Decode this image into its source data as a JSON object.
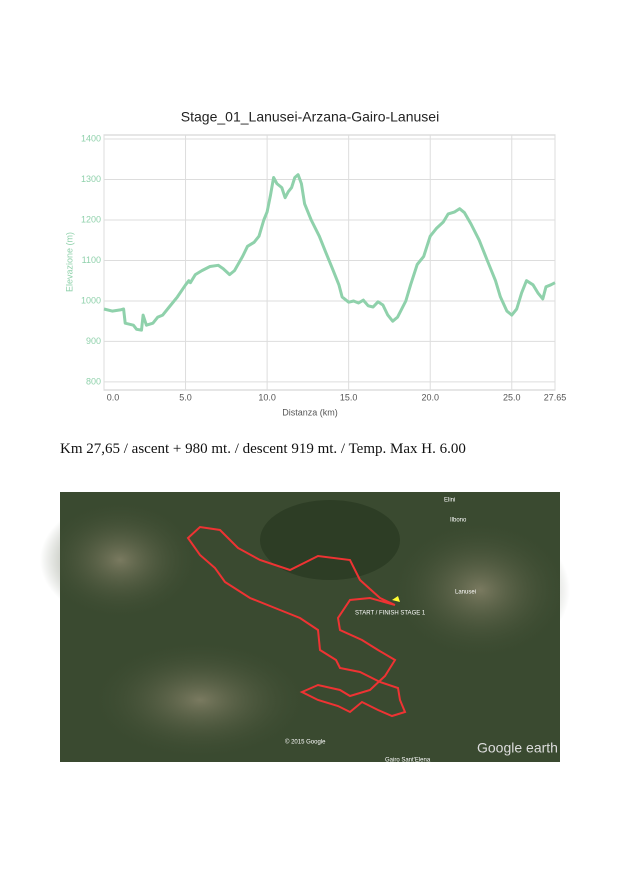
{
  "chart_data": {
    "type": "line",
    "title": "Stage_01_Lanusei-Arzana-Gairo-Lanusei",
    "x_label": "Distanza (km)",
    "y_label": "Elevazione (m)",
    "x": [
      0,
      0.5,
      1.0,
      1.2,
      1.3,
      1.8,
      2.0,
      2.3,
      2.4,
      2.6,
      3.0,
      3.3,
      3.6,
      4.0,
      4.5,
      5.0,
      5.2,
      5.3,
      5.6,
      6.0,
      6.5,
      7.0,
      7.3,
      7.7,
      8.0,
      8.5,
      8.8,
      9.2,
      9.5,
      9.8,
      10.0,
      10.2,
      10.4,
      10.6,
      10.9,
      11.1,
      11.3,
      11.5,
      11.7,
      11.9,
      12.1,
      12.3,
      12.7,
      13.2,
      13.6,
      14.0,
      14.4,
      14.6,
      15.0,
      15.3,
      15.6,
      15.9,
      16.2,
      16.5,
      16.8,
      17.1,
      17.4,
      17.7,
      18.0,
      18.5,
      18.8,
      19.2,
      19.6,
      20.0,
      20.4,
      20.8,
      21.1,
      21.5,
      21.8,
      22.1,
      22.5,
      23.0,
      23.5,
      24.0,
      24.3,
      24.7,
      25.0,
      25.3,
      25.6,
      25.9,
      26.3,
      26.6,
      26.9,
      27.1,
      27.4,
      27.65
    ],
    "series": [
      {
        "name": "Elevazione",
        "color": "#8fd1ab",
        "values": [
          980,
          975,
          978,
          980,
          945,
          940,
          930,
          928,
          965,
          940,
          945,
          960,
          965,
          985,
          1010,
          1040,
          1050,
          1045,
          1065,
          1075,
          1085,
          1088,
          1080,
          1065,
          1075,
          1110,
          1135,
          1145,
          1160,
          1200,
          1220,
          1260,
          1305,
          1290,
          1280,
          1255,
          1270,
          1280,
          1305,
          1312,
          1290,
          1240,
          1200,
          1160,
          1120,
          1080,
          1040,
          1010,
          997,
          1000,
          995,
          1002,
          988,
          985,
          998,
          990,
          965,
          950,
          960,
          1000,
          1040,
          1090,
          1110,
          1160,
          1180,
          1195,
          1215,
          1220,
          1228,
          1218,
          1190,
          1150,
          1100,
          1050,
          1010,
          975,
          965,
          980,
          1020,
          1050,
          1040,
          1020,
          1005,
          1035,
          1040,
          1045
        ]
      }
    ],
    "xlim": [
      0,
      27.65
    ],
    "ylim": [
      780,
      1410
    ],
    "xticks": [
      {
        "value": 0,
        "label": "0.0"
      },
      {
        "value": 5,
        "label": "5.0"
      },
      {
        "value": 10,
        "label": "10.0"
      },
      {
        "value": 15,
        "label": "15.0"
      },
      {
        "value": 20,
        "label": "20.0"
      },
      {
        "value": 25,
        "label": "25.0"
      },
      27.65
    ],
    "yticks": [
      800,
      900,
      1000,
      1100,
      1200,
      1300,
      1400
    ],
    "grid": true
  },
  "summary": "Km 27,65 / ascent + 980 mt. / descent 919 mt. / Temp. Max  H. 6.00",
  "map": {
    "labels": [
      "Elini",
      "Ilbono",
      "Lanusei",
      "START / FINISH STAGE 1",
      "© 2015 Google",
      "Gairo Sant'Elena",
      "Google earth"
    ]
  }
}
